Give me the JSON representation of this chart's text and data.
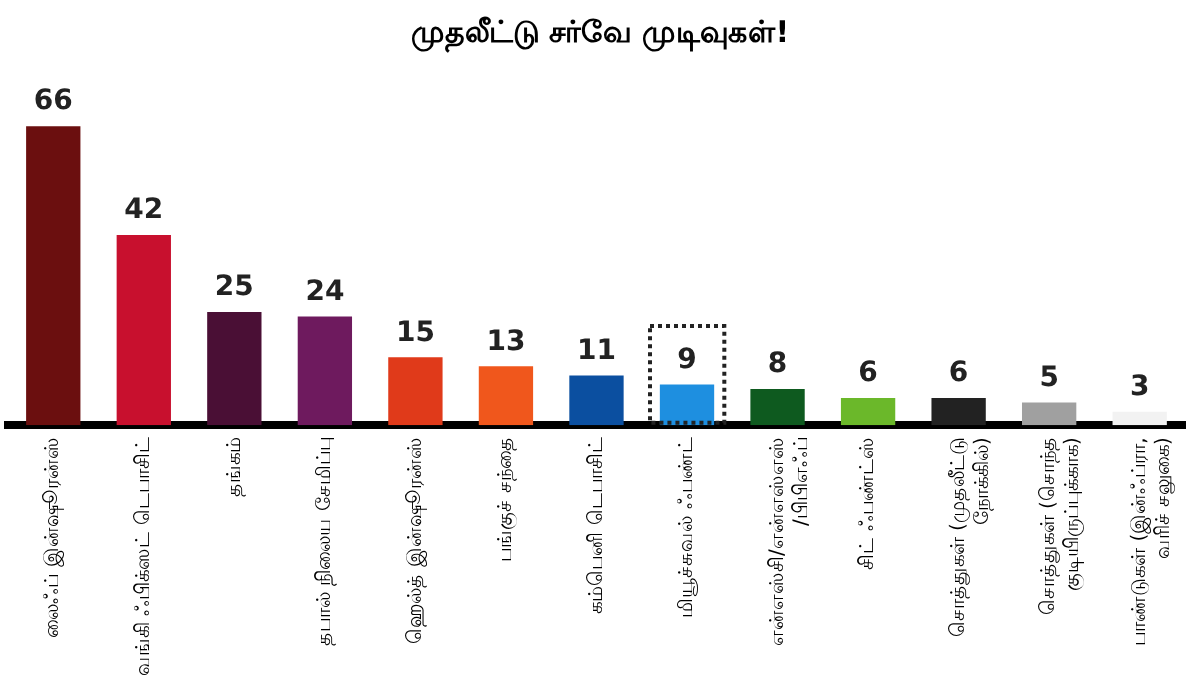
{
  "chart_data": {
    "type": "bar",
    "title": "முதலீட்டு சர்வே முடிவுகள்!",
    "categories": [
      "லைஃப் இன்ஷூரன்ஸ்",
      "வங்கி ஃபிக்ஸட் டெபாசிட்",
      "தங்கம்",
      "தபால் நிலைய சேமிப்பு",
      "ஹெல்த் இன்ஷூரன்ஸ்",
      "பங்குச் சந்தை",
      "கம்பெனி டெபாசிட்",
      "மியூச்சுவல் ஃபண்ட்",
      "என்எஸ்சி/என்எஸ்எஸ்/பிபிஎஃப்",
      "சிட் ஃபண்ட்ஸ்",
      "சொத்துகள் (முதலீட்டு நோக்கில்)",
      "சொத்துகள் (சொந்த குடியிருப்புக்காக)",
      "பாண்டுகள் (இன்ஃப்ரா, வரிச் சலுகை)"
    ],
    "values": [
      66,
      42,
      25,
      24,
      15,
      13,
      11,
      9,
      8,
      6,
      6,
      5,
      3
    ],
    "colors": [
      "#6b0f0f",
      "#c8102e",
      "#4a0f35",
      "#6e1a5e",
      "#e03a1a",
      "#f0571c",
      "#0b4fa0",
      "#1e8fe0",
      "#0e5a1f",
      "#6bb82a",
      "#222222",
      "#a0a0a0",
      "#f2f2f2"
    ],
    "data_labels": true
  }
}
